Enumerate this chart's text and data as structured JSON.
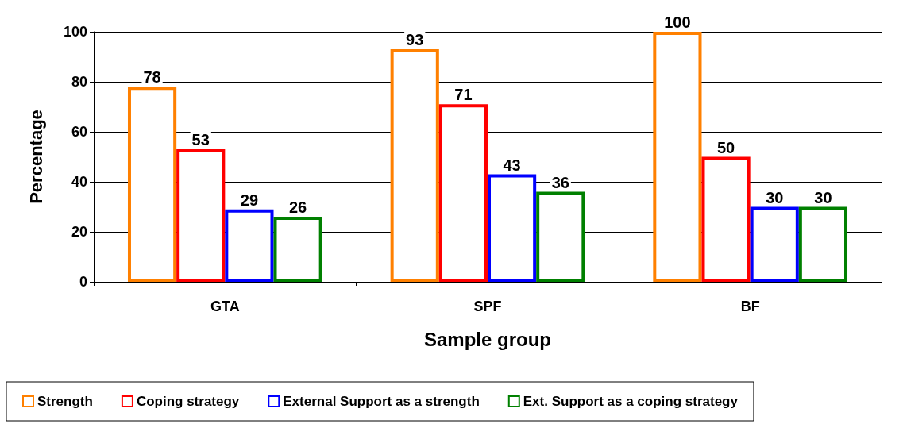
{
  "chart_data": {
    "type": "bar",
    "xlabel": "Sample group",
    "ylabel": "Percentage",
    "categories": [
      "GTA",
      "SPF",
      "BF"
    ],
    "series": [
      {
        "name": "Strength",
        "color": "#ff8000",
        "values": [
          78,
          93,
          100
        ]
      },
      {
        "name": "Coping strategy",
        "color": "#ff0000",
        "values": [
          53,
          71,
          50
        ]
      },
      {
        "name": "External Support as a strength",
        "color": "#0000ff",
        "values": [
          29,
          43,
          30
        ]
      },
      {
        "name": "Ext. Support as a coping strategy",
        "color": "#008000",
        "values": [
          26,
          36,
          30
        ]
      }
    ],
    "ylim": [
      0,
      100
    ],
    "yticks": [
      0,
      20,
      40,
      60,
      80,
      100
    ],
    "grid": "y",
    "legend": "bottom",
    "data_labels": true
  }
}
